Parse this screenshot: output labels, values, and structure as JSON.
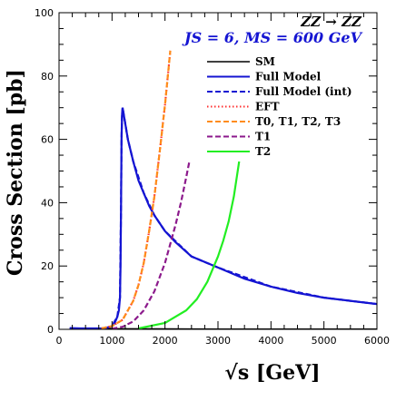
{
  "chart_data": {
    "type": "line",
    "xlabel": "√s [GeV]",
    "ylabel": "Cross Section [pb]",
    "xlim": [
      0,
      6000
    ],
    "ylim": [
      0,
      100
    ],
    "xticks": [
      0,
      1000,
      2000,
      3000,
      4000,
      5000,
      6000
    ],
    "yticks": [
      0,
      20,
      40,
      60,
      80,
      100
    ],
    "grid": false,
    "legend_position": "top-right",
    "annotations": [
      "ZZ → ZZ",
      "J_S = 6, M_S = 600 GeV"
    ],
    "series": [
      {
        "name": "SM",
        "color": "#000000",
        "dash": "solid",
        "x": [
          200,
          400,
          1000,
          2000,
          3000,
          4000,
          5000,
          6000
        ],
        "y": [
          0.3,
          0.3,
          0.2,
          0.15,
          0.1,
          0.1,
          0.1,
          0.1
        ]
      },
      {
        "name": "Full Model",
        "color": "#1414d2",
        "dash": "solid",
        "x": [
          200,
          400,
          600,
          800,
          900,
          1000,
          1050,
          1100,
          1130,
          1150,
          1160,
          1170,
          1180,
          1190,
          1200,
          1250,
          1300,
          1400,
          1500,
          1600,
          1700,
          1800,
          2000,
          2200,
          2500,
          3000,
          3500,
          4000,
          4500,
          5000,
          5500,
          6000
        ],
        "y": [
          0.4,
          0.3,
          0.3,
          0.3,
          0.5,
          1,
          2,
          4,
          6,
          10,
          20,
          40,
          60,
          68,
          70,
          65,
          60,
          53,
          47,
          43,
          39,
          36,
          31,
          27.5,
          23,
          19.5,
          16,
          13.5,
          11.5,
          10,
          9,
          8
        ]
      },
      {
        "name": "Full Model (int)",
        "color": "#1414d2",
        "dash": "dashed",
        "x": [
          900,
          1000,
          1100,
          1150,
          1170,
          1180,
          1190,
          1200,
          1250,
          1300,
          1400,
          1600,
          1800,
          2000,
          2500,
          3000,
          4000,
          5000,
          6000
        ],
        "y": [
          0.5,
          1,
          4,
          10,
          40,
          60,
          68,
          70,
          65,
          60,
          53,
          43,
          36,
          31,
          23,
          19.5,
          13.5,
          10,
          8
        ]
      },
      {
        "name": "EFT",
        "color": "#ff3030",
        "dash": "dotted",
        "x": [
          800,
          1000,
          1200,
          1400,
          1500,
          1600,
          1700,
          1800,
          1900,
          2000,
          2100
        ],
        "y": [
          0.3,
          1,
          3,
          9,
          14,
          21,
          31,
          42,
          56,
          71,
          88
        ]
      },
      {
        "name": "T_0, T_1, T_2, T_3",
        "color": "#ff8c1a",
        "dash": "dashed",
        "x": [
          800,
          1000,
          1200,
          1400,
          1500,
          1600,
          1700,
          1800,
          1900,
          2000,
          2100
        ],
        "y": [
          0.3,
          1,
          3,
          9,
          14,
          21,
          31,
          42,
          56,
          71,
          88
        ]
      },
      {
        "name": "T_1",
        "color": "#8c1a8c",
        "dash": "dashed",
        "x": [
          1000,
          1200,
          1400,
          1600,
          1800,
          2000,
          2100,
          2200,
          2300,
          2400,
          2460
        ],
        "y": [
          0.2,
          0.8,
          2.5,
          6,
          12,
          21,
          27,
          33,
          40,
          48,
          53
        ]
      },
      {
        "name": "T_2",
        "color": "#22ee22",
        "dash": "solid",
        "x": [
          1500,
          2000,
          2400,
          2600,
          2800,
          3000,
          3100,
          3200,
          3300,
          3400
        ],
        "y": [
          0.3,
          2,
          6,
          9.5,
          15,
          23,
          28,
          34,
          42,
          53
        ]
      }
    ]
  },
  "legend": [
    {
      "label": "SM"
    },
    {
      "label": "Full Model"
    },
    {
      "label": "Full Model (int)"
    },
    {
      "label": "EFT"
    },
    {
      "label": "T0, T1, T2, T3"
    },
    {
      "label": "T1"
    },
    {
      "label": "T2"
    }
  ],
  "annotations": {
    "process": "ZZ → ZZ",
    "params": "JS = 6, MS = 600 GeV"
  }
}
